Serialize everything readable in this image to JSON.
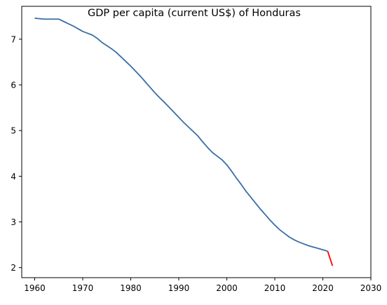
{
  "chart_data": {
    "type": "line",
    "title": "GDP per capita (current US$) of Honduras",
    "xlabel": "",
    "ylabel": "",
    "xlim": [
      1957.3,
      2030
    ],
    "ylim": [
      1.78,
      7.72
    ],
    "xticks": [
      1960,
      1970,
      1980,
      1990,
      2000,
      2010,
      2020,
      2030
    ],
    "yticks": [
      2,
      3,
      4,
      5,
      6,
      7
    ],
    "grid": false,
    "legend": "none",
    "series": [
      {
        "color": "#3a6ea5",
        "x": [
          1960,
          1961,
          1962,
          1963,
          1964,
          1965,
          1966,
          1967,
          1968,
          1969,
          1970,
          1971,
          1972,
          1973,
          1974,
          1975,
          1976,
          1977,
          1978,
          1979,
          1980,
          1981,
          1982,
          1983,
          1984,
          1985,
          1986,
          1987,
          1988,
          1989,
          1990,
          1991,
          1992,
          1993,
          1994,
          1995,
          1996,
          1997,
          1998,
          1999,
          2000,
          2001,
          2002,
          2003,
          2004,
          2005,
          2006,
          2007,
          2008,
          2009,
          2010,
          2011,
          2012,
          2013,
          2014,
          2015,
          2016,
          2017,
          2018,
          2019,
          2020,
          2021
        ],
        "y": [
          7.46,
          7.45,
          7.44,
          7.44,
          7.44,
          7.44,
          7.39,
          7.34,
          7.29,
          7.23,
          7.17,
          7.13,
          7.09,
          7.02,
          6.93,
          6.86,
          6.79,
          6.71,
          6.61,
          6.51,
          6.41,
          6.3,
          6.19,
          6.07,
          5.95,
          5.83,
          5.72,
          5.62,
          5.51,
          5.4,
          5.29,
          5.18,
          5.08,
          4.98,
          4.88,
          4.75,
          4.63,
          4.52,
          4.44,
          4.36,
          4.25,
          4.11,
          3.96,
          3.82,
          3.67,
          3.54,
          3.41,
          3.28,
          3.16,
          3.04,
          2.93,
          2.83,
          2.75,
          2.67,
          2.61,
          2.56,
          2.52,
          2.48,
          2.45,
          2.42,
          2.39,
          2.36
        ]
      },
      {
        "color": "#ff0000",
        "x": [
          2021,
          2022
        ],
        "y": [
          2.36,
          2.04
        ]
      }
    ]
  }
}
